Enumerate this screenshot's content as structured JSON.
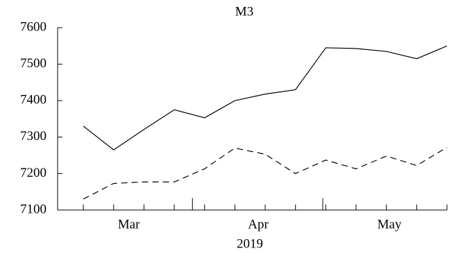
{
  "chart_data": {
    "type": "line",
    "title": "M3",
    "xlabel": "2019",
    "x": [
      0,
      1,
      2,
      3,
      4,
      5,
      6,
      7,
      8,
      9,
      10,
      11,
      12
    ],
    "series": [
      {
        "color": "#000000",
        "dash": "solid",
        "values": [
          7330,
          7265,
          7321,
          7375,
          7353,
          7400,
          7418,
          7430,
          7545,
          7543,
          7535,
          7515,
          7550
        ]
      },
      {
        "color": "#000000",
        "dash": "dashed",
        "values": [
          7130,
          7173,
          7177,
          7177,
          7213,
          7270,
          7253,
          7200,
          7237,
          7213,
          7248,
          7222,
          7272
        ]
      }
    ],
    "xlim": [
      -0.85,
      12
    ],
    "xticks": [
      {
        "value": 1.5,
        "label": "Mar"
      },
      {
        "value": 5.77,
        "label": "Apr"
      },
      {
        "value": 10.1,
        "label": "May"
      }
    ],
    "xticks_major": [
      -0.85,
      3.6,
      7.9
    ],
    "ylim": [
      7100,
      7600
    ],
    "yticks": [
      7100,
      7200,
      7300,
      7400,
      7500,
      7600
    ],
    "grid": false
  }
}
